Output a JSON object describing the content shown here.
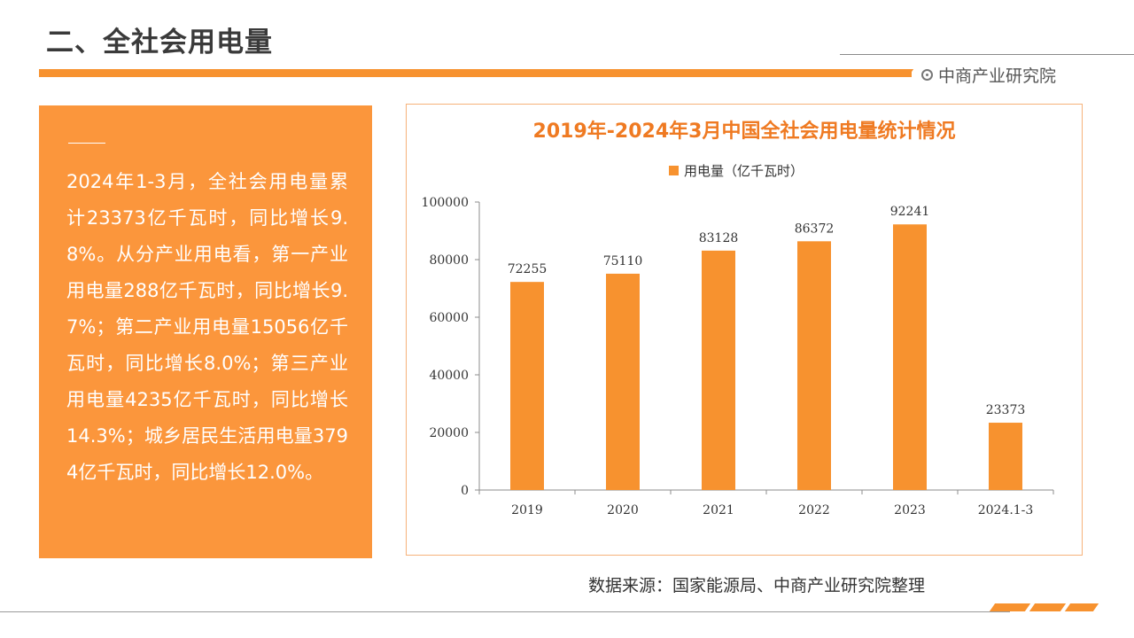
{
  "header": {
    "title": "二、全社会用电量",
    "brand": "中商产业研究院"
  },
  "summary": {
    "text": "2024年1-3月，全社会用电量累计23373亿千瓦时，同比增长9.8%。从分产业用电看，第一产业用电量288亿千瓦时，同比增长9.7%；第二产业用电量15056亿千瓦时，同比增长8.0%；第三产业用电量4235亿千瓦时，同比增长14.3%；城乡居民生活用电量3794亿千瓦时，同比增长12.0%。"
  },
  "source": "数据来源：国家能源局、中商产业研究院整理",
  "colors": {
    "accent": "#f7922f",
    "textbox_bg": "#fb963c",
    "title_orange": "#ef7a22"
  },
  "icons": {
    "brand": "target-circle-icon"
  },
  "chart_data": {
    "type": "bar",
    "title": "2019年-2024年3月中国全社会用电量统计情况",
    "categories": [
      "2019",
      "2020",
      "2021",
      "2022",
      "2023",
      "2024.1-3"
    ],
    "series": [
      {
        "name": "用电量（亿千瓦时）",
        "values": [
          72255,
          75110,
          83128,
          86372,
          92241,
          23373
        ]
      }
    ],
    "ylim": [
      0,
      100000
    ],
    "yticks": [
      0,
      20000,
      40000,
      60000,
      80000,
      100000
    ],
    "legend": "top",
    "grid": false,
    "data_labels": true
  }
}
